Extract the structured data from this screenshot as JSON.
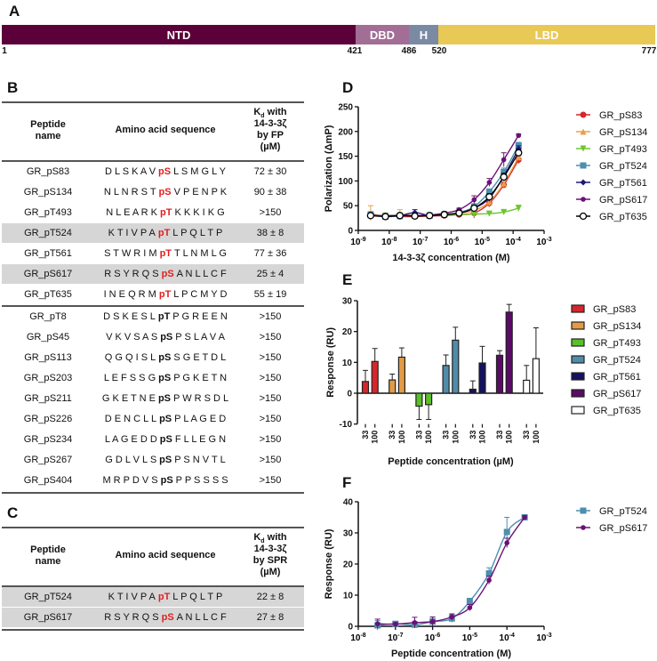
{
  "panel_labels": {
    "a": "A",
    "b": "B",
    "c": "C",
    "d": "D",
    "e": "E",
    "f": "F"
  },
  "domain_map": {
    "segments": [
      {
        "label": "NTD",
        "color": "#5c003a"
      },
      {
        "label": "DBD",
        "color": "#a26e96"
      },
      {
        "label": "H",
        "color": "#7a8aa3"
      },
      {
        "label": "LBD",
        "color": "#e9c955"
      }
    ],
    "positions": [
      "1",
      "421",
      "486",
      "520",
      "777"
    ]
  },
  "table_b": {
    "headers": {
      "name": [
        "Peptide",
        "name"
      ],
      "seq": "Amino acid sequence",
      "kd_k": "K",
      "kd_sub": "d",
      "kd_rest": [
        "with",
        "14-3-3ζ",
        "by FP",
        "(µM)"
      ]
    },
    "rows": [
      {
        "name": "GR_pS83",
        "pre": "D L S K A V",
        "ph": "pS",
        "post": "L S M G L Y",
        "kd": "72 ± 30",
        "red": true,
        "shade": false
      },
      {
        "name": "GR_pS134",
        "pre": "N L N R S T",
        "ph": "pS",
        "post": "V P E N P K",
        "kd": "90 ± 38",
        "red": true,
        "shade": false
      },
      {
        "name": "GR_pT493",
        "pre": "N L E A R K",
        "ph": "pT",
        "post": "K K K I K G",
        "kd": ">150",
        "red": true,
        "shade": false
      },
      {
        "name": "GR_pT524",
        "pre": "K T I V P A",
        "ph": "pT",
        "post": "L P Q L T P",
        "kd": "38 ± 8",
        "red": true,
        "shade": true
      },
      {
        "name": "GR_pT561",
        "pre": "S T W R I M",
        "ph": "pT",
        "post": "T L N M L G",
        "kd": "77 ± 36",
        "red": true,
        "shade": false
      },
      {
        "name": "GR_pS617",
        "pre": "R S Y R Q S",
        "ph": "pS",
        "post": "A N L L C F",
        "kd": "25 ± 4",
        "red": true,
        "shade": true
      },
      {
        "name": "GR_pT635",
        "pre": "I N E Q R M",
        "ph": "pT",
        "post": "L P C M Y D",
        "kd": "55 ± 19",
        "red": true,
        "shade": false
      },
      {
        "name": "GR_pT8",
        "pre": "D S K E S L",
        "ph": "pT",
        "post": "P G R E E N",
        "kd": ">150",
        "red": false,
        "shade": false
      },
      {
        "name": "GR_pS45",
        "pre": "V K V S A S",
        "ph": "pS",
        "post": "P S L A V A",
        "kd": ">150",
        "red": false,
        "shade": false
      },
      {
        "name": "GR_pS113",
        "pre": "Q G Q I S L",
        "ph": "pS",
        "post": "S G E T D L",
        "kd": ">150",
        "red": false,
        "shade": false
      },
      {
        "name": "GR_pS203",
        "pre": "L E F S S G",
        "ph": "pS",
        "post": "P G K E T N",
        "kd": ">150",
        "red": false,
        "shade": false
      },
      {
        "name": "GR_pS211",
        "pre": "G K E T N E",
        "ph": "pS",
        "post": "P W R S D L",
        "kd": ">150",
        "red": false,
        "shade": false
      },
      {
        "name": "GR_pS226",
        "pre": "D E N C L L",
        "ph": "pS",
        "post": "P L A G E D",
        "kd": ">150",
        "red": false,
        "shade": false
      },
      {
        "name": "GR_pS234",
        "pre": "L A G E D D",
        "ph": "pS",
        "post": "F L L E G N",
        "kd": ">150",
        "red": false,
        "shade": false
      },
      {
        "name": "GR_pS267",
        "pre": "G D L V L S",
        "ph": "pS",
        "post": "P S N V T L",
        "kd": ">150",
        "red": false,
        "shade": false
      },
      {
        "name": "GR_pS404",
        "pre": "M R P D V S",
        "ph": "pS",
        "post": "P P S S S S",
        "kd": ">150",
        "red": false,
        "shade": false
      }
    ]
  },
  "table_c": {
    "headers": {
      "name": [
        "Peptide",
        "name"
      ],
      "seq": "Amino acid sequence",
      "kd_k": "K",
      "kd_sub": "d",
      "kd_rest": [
        "with",
        "14-3-3ζ",
        "by SPR",
        "(µM)"
      ]
    },
    "rows": [
      {
        "name": "GR_pT524",
        "pre": "K T I V P A",
        "ph": "pT",
        "post": "L P Q L T P",
        "kd": "22 ± 8",
        "red": true,
        "shade": true
      },
      {
        "name": "GR_pS617",
        "pre": "R S Y R Q S",
        "ph": "pS",
        "post": "A N L L C F",
        "kd": "27 ± 8",
        "red": true,
        "shade": true
      }
    ]
  },
  "chart_data": [
    {
      "id": "D",
      "type": "line",
      "xscale": "log",
      "xlabel": "14-3-3ζ concentration (M)",
      "ylabel": "Polarization (ΔmP)",
      "xlim_exp": [
        -9,
        -3
      ],
      "ylim": [
        0,
        250
      ],
      "yticks": [
        0,
        50,
        100,
        150,
        200,
        250
      ],
      "tick_base": "10",
      "legend": "right",
      "x": [
        2.5e-09,
        7.5e-09,
        2.2e-08,
        6.7e-08,
        2e-07,
        6e-07,
        1.8e-06,
        5.5e-06,
        1.7e-05,
        5e-05,
        0.00015
      ],
      "series": [
        {
          "name": "GR_pS83",
          "color": "#d7262b",
          "marker": "circle",
          "values": [
            30,
            29,
            28,
            28,
            29,
            30,
            32,
            35,
            55,
            92,
            143
          ],
          "err": [
            3,
            2,
            2,
            2,
            2,
            2,
            3,
            10,
            8,
            6,
            8
          ]
        },
        {
          "name": "GR_pS134",
          "color": "#e8a04a",
          "marker": "triangle",
          "values": [
            35,
            28,
            32,
            30,
            31,
            33,
            35,
            40,
            58,
            95,
            148
          ],
          "err": [
            15,
            4,
            10,
            3,
            3,
            4,
            3,
            6,
            10,
            8,
            6
          ]
        },
        {
          "name": "GR_pT493",
          "color": "#6cc62e",
          "marker": "triangle-down",
          "values": [
            30,
            30,
            30,
            30,
            30,
            31,
            32,
            33,
            34,
            37,
            45
          ],
          "err": [
            3,
            2,
            2,
            2,
            2,
            2,
            2,
            2,
            3,
            3,
            6
          ]
        },
        {
          "name": "GR_pT524",
          "color": "#4d8fad",
          "marker": "square",
          "values": [
            32,
            28,
            29,
            30,
            30,
            32,
            36,
            48,
            78,
            118,
            172
          ],
          "err": [
            6,
            3,
            2,
            3,
            2,
            3,
            4,
            6,
            6,
            8,
            6
          ]
        },
        {
          "name": "GR_pT561",
          "color": "#1c1a78",
          "marker": "diamond",
          "values": [
            30,
            30,
            30,
            36,
            30,
            32,
            35,
            45,
            65,
            110,
            165
          ],
          "err": [
            3,
            2,
            2,
            6,
            2,
            2,
            3,
            5,
            6,
            6,
            6
          ]
        },
        {
          "name": "GR_pS617",
          "color": "#6a1077",
          "marker": "circle-small",
          "values": [
            30,
            30,
            30,
            30,
            31,
            35,
            42,
            62,
            97,
            143,
            192
          ],
          "err": [
            3,
            2,
            2,
            2,
            2,
            3,
            3,
            8,
            8,
            14,
            3
          ]
        },
        {
          "name": "GR_pT635",
          "color": "#000000",
          "marker": "open-circle",
          "values": [
            30,
            28,
            30,
            29,
            30,
            32,
            35,
            45,
            68,
            108,
            157
          ],
          "err": [
            3,
            2,
            2,
            2,
            2,
            2,
            3,
            5,
            6,
            6,
            6
          ]
        }
      ]
    },
    {
      "id": "E",
      "type": "bar",
      "xlabel": "Peptide concentration (µM)",
      "ylabel": "Response (RU)",
      "ylim": [
        -10,
        30
      ],
      "yticks": [
        -10,
        0,
        10,
        20,
        30
      ],
      "categories": [
        "33",
        "100"
      ],
      "legend": "right",
      "series": [
        {
          "name": "GR_pS83",
          "color": "#d7262b",
          "values": [
            3.8,
            10.3
          ],
          "err": [
            3.6,
            4.2
          ]
        },
        {
          "name": "GR_pS134",
          "color": "#e39a45",
          "values": [
            4.3,
            11.7
          ],
          "err": [
            1.9,
            3.0
          ]
        },
        {
          "name": "GR_pT493",
          "color": "#5bbf2a",
          "values": [
            -4.2,
            -3.7
          ],
          "err": [
            4.3,
            4.8
          ]
        },
        {
          "name": "GR_pT524",
          "color": "#4f8ca9",
          "values": [
            9.0,
            17.2
          ],
          "err": [
            3.4,
            4.2
          ]
        },
        {
          "name": "GR_pT561",
          "color": "#14125e",
          "values": [
            1.3,
            9.8
          ],
          "err": [
            2.7,
            5.4
          ]
        },
        {
          "name": "GR_pS617",
          "color": "#5b0a67",
          "values": [
            12.3,
            26.3
          ],
          "err": [
            1.5,
            2.5
          ]
        },
        {
          "name": "GR_pT635",
          "color": "#ffffff",
          "values": [
            4.2,
            11.2
          ],
          "err": [
            4.8,
            10.0
          ]
        }
      ]
    },
    {
      "id": "F",
      "type": "line",
      "xscale": "log",
      "xlabel": "Peptide concentration (M)",
      "ylabel": "Response (RU)",
      "xlim_exp": [
        -8,
        -3
      ],
      "ylim": [
        0,
        40
      ],
      "yticks": [
        0,
        10,
        20,
        30,
        40
      ],
      "tick_base": "10",
      "legend": "right",
      "x": [
        3.3e-08,
        1e-07,
        3.3e-07,
        1e-06,
        3.3e-06,
        1e-05,
        3.3e-05,
        0.0001,
        0.0003
      ],
      "series": [
        {
          "name": "GR_pT524",
          "color": "#4d8fad",
          "marker": "square",
          "values": [
            0.3,
            0.8,
            0.5,
            1.5,
            2.5,
            8,
            17,
            30.3,
            35
          ],
          "err": [
            1.5,
            0.5,
            1,
            1,
            1.2,
            1,
            1.8,
            4.7,
            0.5
          ]
        },
        {
          "name": "GR_pS617",
          "color": "#6a1077",
          "marker": "circle-small",
          "values": [
            0.8,
            0.7,
            1.2,
            1.5,
            3,
            6,
            14.8,
            26.8,
            35
          ],
          "err": [
            1.5,
            0.5,
            1.7,
            1.5,
            1,
            1,
            1.3,
            1.5,
            0.5
          ]
        }
      ]
    }
  ]
}
